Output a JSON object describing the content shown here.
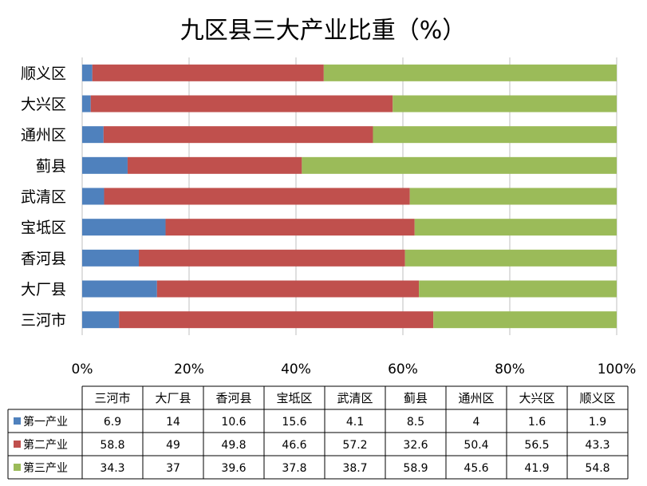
{
  "chart_data": {
    "type": "bar",
    "orientation": "horizontal",
    "stacked": "percent",
    "title": "九区县三大产业比重（%）",
    "categories": [
      "三河市",
      "大厂县",
      "香河县",
      "宝坻区",
      "武清区",
      "蓟县",
      "通州区",
      "大兴区",
      "顺义区"
    ],
    "series": [
      {
        "name": "第一产业",
        "color": "#4f81bd",
        "values": [
          6.9,
          14,
          10.6,
          15.6,
          4.1,
          8.5,
          4,
          1.6,
          1.9
        ]
      },
      {
        "name": "第二产业",
        "color": "#c0504d",
        "values": [
          58.8,
          49,
          49.8,
          46.6,
          57.2,
          32.6,
          50.4,
          56.5,
          43.3
        ]
      },
      {
        "name": "第三产业",
        "color": "#9bbb59",
        "values": [
          34.3,
          37,
          39.6,
          37.8,
          38.7,
          58.9,
          45.6,
          41.9,
          54.8
        ]
      }
    ],
    "xlim": [
      0,
      100
    ],
    "xticks": [
      "0%",
      "20%",
      "40%",
      "60%",
      "80%",
      "100%"
    ],
    "grid": true,
    "legend": "data-table"
  }
}
